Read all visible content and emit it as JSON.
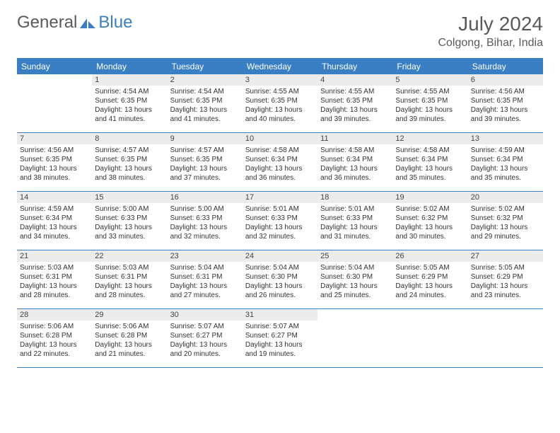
{
  "brand": {
    "word1": "General",
    "word2": "Blue"
  },
  "title": "July 2024",
  "location": "Colgong, Bihar, India",
  "colors": {
    "accent": "#3a7fc4",
    "header_text": "#5a5a5a",
    "daynum_bg": "#ececec"
  },
  "day_names": [
    "Sunday",
    "Monday",
    "Tuesday",
    "Wednesday",
    "Thursday",
    "Friday",
    "Saturday"
  ],
  "layout": {
    "first_day_col": 1,
    "days_in_month": 31
  },
  "days": {
    "1": {
      "sunrise": "4:54 AM",
      "sunset": "6:35 PM",
      "daylight": "13 hours and 41 minutes."
    },
    "2": {
      "sunrise": "4:54 AM",
      "sunset": "6:35 PM",
      "daylight": "13 hours and 41 minutes."
    },
    "3": {
      "sunrise": "4:55 AM",
      "sunset": "6:35 PM",
      "daylight": "13 hours and 40 minutes."
    },
    "4": {
      "sunrise": "4:55 AM",
      "sunset": "6:35 PM",
      "daylight": "13 hours and 39 minutes."
    },
    "5": {
      "sunrise": "4:55 AM",
      "sunset": "6:35 PM",
      "daylight": "13 hours and 39 minutes."
    },
    "6": {
      "sunrise": "4:56 AM",
      "sunset": "6:35 PM",
      "daylight": "13 hours and 39 minutes."
    },
    "7": {
      "sunrise": "4:56 AM",
      "sunset": "6:35 PM",
      "daylight": "13 hours and 38 minutes."
    },
    "8": {
      "sunrise": "4:57 AM",
      "sunset": "6:35 PM",
      "daylight": "13 hours and 38 minutes."
    },
    "9": {
      "sunrise": "4:57 AM",
      "sunset": "6:35 PM",
      "daylight": "13 hours and 37 minutes."
    },
    "10": {
      "sunrise": "4:58 AM",
      "sunset": "6:34 PM",
      "daylight": "13 hours and 36 minutes."
    },
    "11": {
      "sunrise": "4:58 AM",
      "sunset": "6:34 PM",
      "daylight": "13 hours and 36 minutes."
    },
    "12": {
      "sunrise": "4:58 AM",
      "sunset": "6:34 PM",
      "daylight": "13 hours and 35 minutes."
    },
    "13": {
      "sunrise": "4:59 AM",
      "sunset": "6:34 PM",
      "daylight": "13 hours and 35 minutes."
    },
    "14": {
      "sunrise": "4:59 AM",
      "sunset": "6:34 PM",
      "daylight": "13 hours and 34 minutes."
    },
    "15": {
      "sunrise": "5:00 AM",
      "sunset": "6:33 PM",
      "daylight": "13 hours and 33 minutes."
    },
    "16": {
      "sunrise": "5:00 AM",
      "sunset": "6:33 PM",
      "daylight": "13 hours and 32 minutes."
    },
    "17": {
      "sunrise": "5:01 AM",
      "sunset": "6:33 PM",
      "daylight": "13 hours and 32 minutes."
    },
    "18": {
      "sunrise": "5:01 AM",
      "sunset": "6:33 PM",
      "daylight": "13 hours and 31 minutes."
    },
    "19": {
      "sunrise": "5:02 AM",
      "sunset": "6:32 PM",
      "daylight": "13 hours and 30 minutes."
    },
    "20": {
      "sunrise": "5:02 AM",
      "sunset": "6:32 PM",
      "daylight": "13 hours and 29 minutes."
    },
    "21": {
      "sunrise": "5:03 AM",
      "sunset": "6:31 PM",
      "daylight": "13 hours and 28 minutes."
    },
    "22": {
      "sunrise": "5:03 AM",
      "sunset": "6:31 PM",
      "daylight": "13 hours and 28 minutes."
    },
    "23": {
      "sunrise": "5:04 AM",
      "sunset": "6:31 PM",
      "daylight": "13 hours and 27 minutes."
    },
    "24": {
      "sunrise": "5:04 AM",
      "sunset": "6:30 PM",
      "daylight": "13 hours and 26 minutes."
    },
    "25": {
      "sunrise": "5:04 AM",
      "sunset": "6:30 PM",
      "daylight": "13 hours and 25 minutes."
    },
    "26": {
      "sunrise": "5:05 AM",
      "sunset": "6:29 PM",
      "daylight": "13 hours and 24 minutes."
    },
    "27": {
      "sunrise": "5:05 AM",
      "sunset": "6:29 PM",
      "daylight": "13 hours and 23 minutes."
    },
    "28": {
      "sunrise": "5:06 AM",
      "sunset": "6:28 PM",
      "daylight": "13 hours and 22 minutes."
    },
    "29": {
      "sunrise": "5:06 AM",
      "sunset": "6:28 PM",
      "daylight": "13 hours and 21 minutes."
    },
    "30": {
      "sunrise": "5:07 AM",
      "sunset": "6:27 PM",
      "daylight": "13 hours and 20 minutes."
    },
    "31": {
      "sunrise": "5:07 AM",
      "sunset": "6:27 PM",
      "daylight": "13 hours and 19 minutes."
    }
  },
  "labels": {
    "sunrise": "Sunrise:",
    "sunset": "Sunset:",
    "daylight": "Daylight:"
  }
}
